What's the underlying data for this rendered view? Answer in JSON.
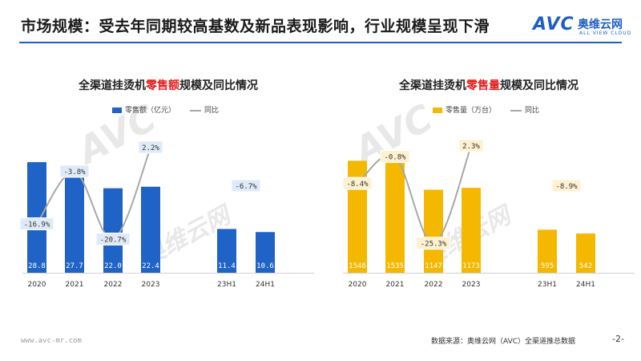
{
  "header": {
    "title": "市场规模：受去年同期较高基数及新品表现影响，行业规模呈现下滑",
    "logo_mark": "AVC",
    "logo_cn": "奥维云网",
    "logo_en": "ALL VIEW CLOUD"
  },
  "watermark": {
    "mark": "AVC",
    "cn": "奥维云网",
    "en": "ALL VIEW CLOUD"
  },
  "colors": {
    "blue": "#1f63c6",
    "yellow": "#f5b800",
    "line": "#a8a8a8",
    "accent": "#1f5fbf",
    "highlight": "#e02020"
  },
  "chart_data": [
    {
      "type": "bar",
      "title_prefix": "全渠道挂烫机",
      "title_highlight": "零售额",
      "title_suffix": "规模及同比情况",
      "legend_bar": "零售额（亿元）",
      "legend_line": "同比",
      "categories": [
        "2020",
        "2021",
        "2022",
        "2023",
        "23H1",
        "24H1"
      ],
      "bar_labels": [
        "28.8",
        "27.7",
        "22.0",
        "22.4",
        "11.4",
        "10.6"
      ],
      "values": [
        28.8,
        27.7,
        22.0,
        22.4,
        11.4,
        10.6
      ],
      "yoy": [
        -16.9,
        -3.8,
        -20.7,
        2.2
      ],
      "yoy_labels": [
        "-16.9%",
        "-3.8%",
        "-20.7%",
        "2.2%"
      ],
      "h1_yoy": -6.7,
      "h1_yoy_label": "-6.7%",
      "ylim": [
        0,
        33
      ],
      "line_ylim": [
        -25,
        5
      ],
      "color": "#1f63c6",
      "box_fill": "#dfeaf8"
    },
    {
      "type": "bar",
      "title_prefix": "全渠道挂烫机",
      "title_highlight": "零售量",
      "title_suffix": "规模及同比情况",
      "legend_bar": "零售量（万台）",
      "legend_line": "同比",
      "categories": [
        "2020",
        "2021",
        "2022",
        "2023",
        "23H1",
        "24H1"
      ],
      "bar_labels": [
        "1546",
        "1535",
        "1147",
        "1173",
        "595",
        "542"
      ],
      "values": [
        1546,
        1535,
        1147,
        1173,
        595,
        542
      ],
      "yoy": [
        -8.4,
        -0.8,
        -25.3,
        2.3
      ],
      "yoy_labels": [
        "-8.4%",
        "-0.8%",
        "-25.3%",
        "2.3%"
      ],
      "h1_yoy": -8.9,
      "h1_yoy_label": "-8.9%",
      "ylim": [
        0,
        1750
      ],
      "line_ylim": [
        -29,
        5
      ],
      "color": "#f5b800",
      "box_fill": "#fdf1cf"
    }
  ],
  "footer": {
    "url": "www.avc-mr.com",
    "source": "数据来源：奥维云网（AVC）全渠道推总数据",
    "page": "-2-"
  }
}
